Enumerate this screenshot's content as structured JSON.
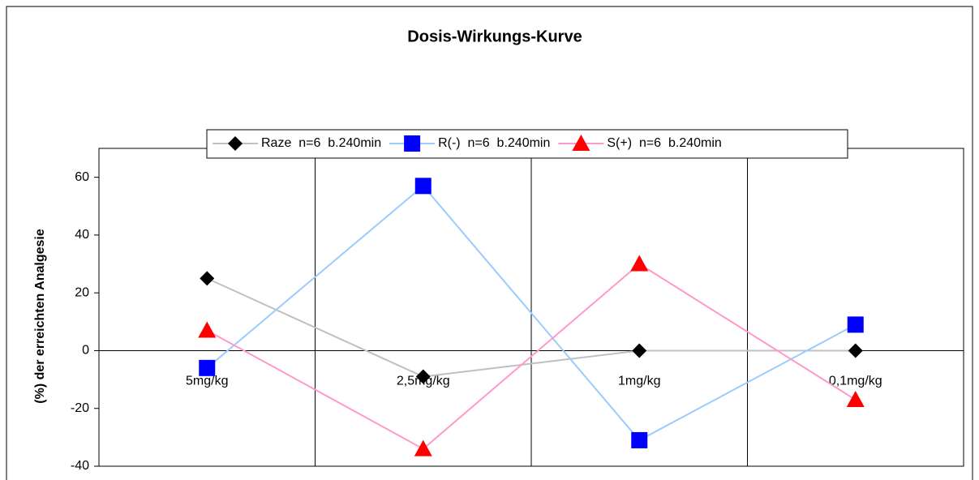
{
  "chart_data": {
    "type": "line",
    "title": "Dosis-Wirkungs-Kurve",
    "y_label": "(%) der erreichten Analgesie",
    "categories": [
      "5mg/kg",
      "2,5mg/kg",
      "1mg/kg",
      "0,1mg/kg"
    ],
    "series": [
      {
        "name": "Raze  n=6  b.240min",
        "color": "#000000",
        "line_color": "#c0c0c0",
        "marker": "diamond",
        "values": [
          25,
          -9,
          0,
          0
        ]
      },
      {
        "name": "R(-)  n=6  b.240min",
        "color": "#0000ff",
        "line_color": "#99ccff",
        "marker": "square",
        "values": [
          -6,
          57,
          -31,
          9
        ]
      },
      {
        "name": "S(+)  n=6  b.240min",
        "color": "#ff0000",
        "line_color": "#ff99cc",
        "marker": "triangle",
        "values": [
          7,
          -34,
          30,
          -17
        ]
      }
    ],
    "ylim": [
      -40,
      70
    ],
    "yticks": [
      -40,
      -20,
      0,
      20,
      40,
      60
    ],
    "grid": true,
    "legend": "top"
  }
}
